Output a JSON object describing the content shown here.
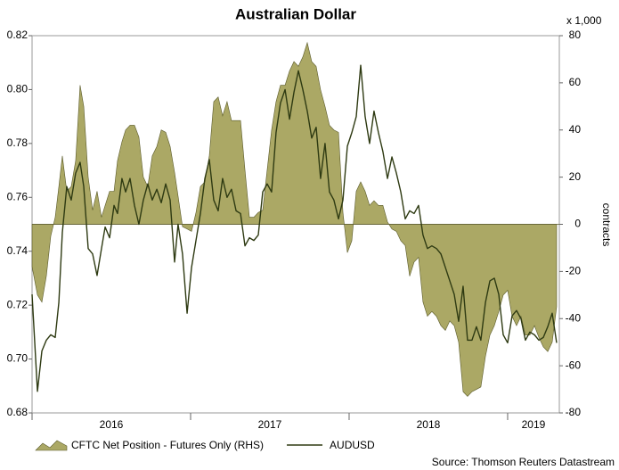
{
  "chart_data": {
    "type": "line",
    "title": "Australian Dollar",
    "y2label": "contracts",
    "y2_unit_label": "x 1,000",
    "source": "Source: Thomson Reuters Datastream",
    "x": [
      2016.0,
      2016.034,
      2016.062,
      2016.09,
      2016.118,
      2016.146,
      2016.169,
      2016.191,
      2016.219,
      2016.247,
      2016.275,
      2016.303,
      2016.326,
      2016.354,
      2016.382,
      2016.41,
      2016.438,
      2016.461,
      2016.489,
      2016.517,
      2016.539,
      2016.567,
      2016.59,
      2016.618,
      2016.646,
      2016.674,
      2016.702,
      2016.73,
      2016.758,
      2016.787,
      2016.815,
      2016.843,
      2016.871,
      2016.899,
      2016.921,
      2016.949,
      2016.978,
      2017.006,
      2017.034,
      2017.062,
      2017.09,
      2017.118,
      2017.146,
      2017.174,
      2017.202,
      2017.23,
      2017.258,
      2017.287,
      2017.315,
      2017.343,
      2017.371,
      2017.399,
      2017.427,
      2017.455,
      2017.483,
      2017.511,
      2017.539,
      2017.567,
      2017.596,
      2017.624,
      2017.652,
      2017.68,
      2017.708,
      2017.736,
      2017.764,
      2017.792,
      2017.82,
      2017.848,
      2017.876,
      2017.904,
      2017.933,
      2017.961,
      2017.989,
      2018.017,
      2018.045,
      2018.073,
      2018.101,
      2018.129,
      2018.157,
      2018.185,
      2018.213,
      2018.242,
      2018.27,
      2018.298,
      2018.326,
      2018.354,
      2018.382,
      2018.41,
      2018.438,
      2018.466,
      2018.494,
      2018.522,
      2018.551,
      2018.579,
      2018.607,
      2018.635,
      2018.663,
      2018.691,
      2018.719,
      2018.747,
      2018.775,
      2018.803,
      2018.831,
      2018.86,
      2018.888,
      2018.916,
      2018.944,
      2018.972,
      2019.0,
      2019.028,
      2019.056,
      2019.084,
      2019.112,
      2019.14,
      2019.169,
      2019.197,
      2019.225,
      2019.253,
      2019.281,
      2019.309
    ],
    "series": [
      {
        "name": "CFTC Net Position - Futures Only (RHS)",
        "type": "area",
        "axis": "y2",
        "color": "#aba865",
        "edge": "#5a5a2a",
        "values": [
          -18,
          -30,
          -33,
          -22,
          -5,
          3,
          16,
          29,
          14,
          16,
          27,
          59,
          50,
          20,
          6,
          14,
          3,
          8,
          14,
          14,
          27,
          35,
          40,
          42,
          42,
          37,
          20,
          16,
          29,
          33,
          40,
          39,
          33,
          22,
          12,
          -1,
          -2,
          -3,
          5,
          16,
          18,
          29,
          52,
          54,
          46,
          52,
          44,
          44,
          44,
          23,
          3,
          3,
          5,
          6,
          23,
          40,
          52,
          59,
          59,
          65,
          69,
          67,
          71,
          77,
          69,
          67,
          57,
          50,
          42,
          40,
          39,
          5,
          -12,
          -7,
          14,
          18,
          14,
          8,
          10,
          8,
          8,
          1,
          -2,
          -3,
          -7,
          -9,
          -22,
          -16,
          -14,
          -33,
          -39,
          -37,
          -39,
          -43,
          -45,
          -41,
          -43,
          -50,
          -71,
          -73,
          -71,
          -70,
          -69,
          -56,
          -47,
          -43,
          -37,
          -30,
          -28,
          -39,
          -43,
          -39,
          -47,
          -47,
          -43,
          -48,
          -52,
          -54,
          -50,
          -35
        ]
      },
      {
        "name": "AUDUSD",
        "type": "line",
        "color": "#2e3a12",
        "values": [
          0.724,
          0.688,
          0.703,
          0.707,
          0.709,
          0.708,
          0.721,
          0.747,
          0.764,
          0.759,
          0.769,
          0.773,
          0.764,
          0.741,
          0.739,
          0.731,
          0.741,
          0.749,
          0.745,
          0.757,
          0.754,
          0.767,
          0.762,
          0.767,
          0.757,
          0.75,
          0.759,
          0.765,
          0.759,
          0.763,
          0.758,
          0.765,
          0.759,
          0.736,
          0.75,
          0.739,
          0.717,
          0.734,
          0.744,
          0.754,
          0.767,
          0.774,
          0.759,
          0.755,
          0.767,
          0.76,
          0.763,
          0.755,
          0.754,
          0.742,
          0.745,
          0.744,
          0.746,
          0.762,
          0.765,
          0.762,
          0.784,
          0.795,
          0.8,
          0.789,
          0.799,
          0.807,
          0.8,
          0.792,
          0.782,
          0.786,
          0.767,
          0.78,
          0.762,
          0.759,
          0.752,
          0.759,
          0.779,
          0.784,
          0.79,
          0.809,
          0.79,
          0.78,
          0.792,
          0.784,
          0.777,
          0.767,
          0.775,
          0.769,
          0.762,
          0.752,
          0.755,
          0.754,
          0.757,
          0.746,
          0.741,
          0.742,
          0.741,
          0.739,
          0.734,
          0.729,
          0.724,
          0.714,
          0.727,
          0.707,
          0.707,
          0.712,
          0.707,
          0.721,
          0.729,
          0.73,
          0.724,
          0.709,
          0.706,
          0.716,
          0.718,
          0.715,
          0.707,
          0.71,
          0.709,
          0.707,
          0.708,
          0.712,
          0.717,
          0.706
        ]
      }
    ],
    "xlim": [
      2016.0,
      2019.326
    ],
    "xticks": [
      2016,
      2017,
      2018,
      2019
    ],
    "ylim": [
      0.68,
      0.82
    ],
    "yticks": [
      0.68,
      {
        "value": 0.7,
        "label": "0.70"
      },
      0.72,
      0.74,
      0.76,
      0.78,
      {
        "value": 0.8,
        "label": "0.80"
      },
      0.82
    ],
    "y2lim": [
      -80,
      80
    ],
    "y2ticks": [
      -80,
      -60,
      -40,
      -20,
      0,
      20,
      40,
      60,
      80
    ]
  }
}
